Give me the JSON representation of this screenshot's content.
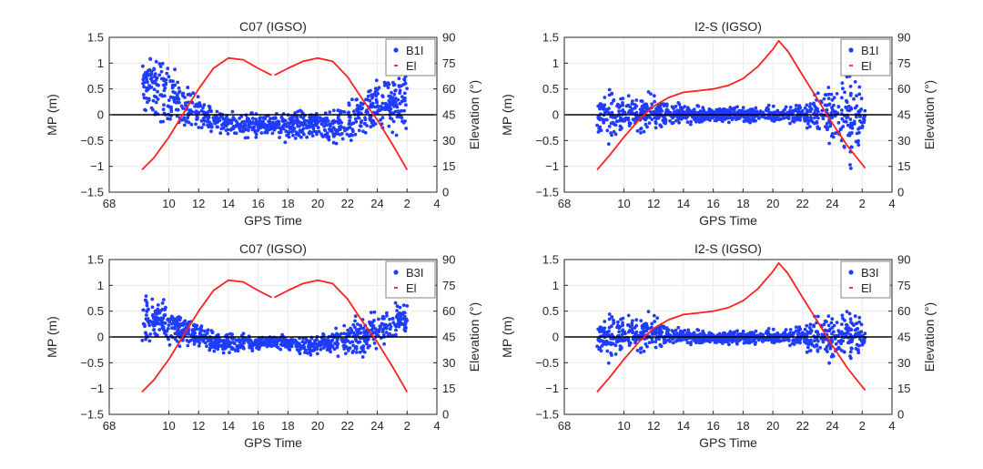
{
  "colors": {
    "series_mp": "#1f3cff",
    "series_el": "#ff2020",
    "zero_line": "#000000",
    "axes": "#262626",
    "grid": "#ececec"
  },
  "chart_data": [
    {
      "type": "scatter",
      "title": "C07 (IGSO)",
      "xlabel": "GPS Time",
      "ylabel": "MP (m)",
      "y2label": "Elevation (°)",
      "ylim": [
        -1.5,
        1.5
      ],
      "y2lim": [
        0,
        90
      ],
      "yticks": [
        "1.5",
        "1",
        "0.5",
        "0",
        "−0.5",
        "−1",
        "−1.5"
      ],
      "y2ticks": [
        "90",
        "75",
        "60",
        "45",
        "30",
        "15",
        "0"
      ],
      "xticks": [
        "68",
        "10",
        "12",
        "14",
        "16",
        "18",
        "20",
        "22",
        "24",
        "2",
        "4"
      ],
      "legend": {
        "position": "top-right",
        "entries": [
          "B1I",
          "El"
        ]
      },
      "grid": true,
      "series": [
        {
          "name": "B1I",
          "kind": "scatter",
          "envelope": [
            {
              "x": 8.2,
              "center": 0.45,
              "spread": 0.6
            },
            {
              "x": 9.0,
              "center": 0.55,
              "spread": 0.7
            },
            {
              "x": 10.0,
              "center": 0.35,
              "spread": 0.55
            },
            {
              "x": 11.0,
              "center": 0.2,
              "spread": 0.45
            },
            {
              "x": 12.0,
              "center": 0.05,
              "spread": 0.3
            },
            {
              "x": 13.0,
              "center": -0.12,
              "spread": 0.25
            },
            {
              "x": 14.5,
              "center": -0.2,
              "spread": 0.22
            },
            {
              "x": 16.9,
              "center": -0.18,
              "spread": 0.2
            },
            {
              "x": 17.1,
              "center": -0.18,
              "spread": 0.25
            },
            {
              "x": 19.0,
              "center": -0.2,
              "spread": 0.28
            },
            {
              "x": 21.0,
              "center": -0.25,
              "spread": 0.32
            },
            {
              "x": 22.0,
              "center": -0.1,
              "spread": 0.35
            },
            {
              "x": 23.0,
              "center": 0.05,
              "spread": 0.45
            },
            {
              "x": 24.0,
              "center": 0.2,
              "spread": 0.55
            },
            {
              "x": 25.0,
              "center": 0.3,
              "spread": 0.65
            },
            {
              "x": 26.0,
              "center": 0.25,
              "spread": 0.65
            }
          ]
        },
        {
          "name": "El",
          "kind": "line",
          "segments": [
            [
              [
                8.2,
                13
              ],
              [
                9,
                20
              ],
              [
                10,
                32
              ],
              [
                11,
                46
              ],
              [
                12,
                60
              ],
              [
                13,
                72
              ],
              [
                14,
                78
              ],
              [
                15,
                77
              ],
              [
                16,
                72
              ],
              [
                16.9,
                68
              ]
            ],
            [
              [
                17.1,
                68
              ],
              [
                18,
                72
              ],
              [
                19,
                76
              ],
              [
                20,
                78
              ],
              [
                21,
                76
              ],
              [
                22,
                67
              ],
              [
                23,
                54
              ],
              [
                24,
                42
              ],
              [
                25,
                28
              ],
              [
                26,
                13
              ]
            ]
          ]
        }
      ]
    },
    {
      "type": "scatter",
      "title": "I2-S (IGSO)",
      "xlabel": "GPS Time",
      "ylabel": "MP (m)",
      "y2label": "Elevation (°)",
      "ylim": [
        -1.5,
        1.5
      ],
      "y2lim": [
        0,
        90
      ],
      "yticks": [
        "1.5",
        "1",
        "0.5",
        "0",
        "−0.5",
        "−1",
        "−1.5"
      ],
      "y2ticks": [
        "90",
        "75",
        "60",
        "45",
        "30",
        "15",
        "0"
      ],
      "xticks": [
        "68",
        "10",
        "12",
        "14",
        "16",
        "18",
        "20",
        "22",
        "24",
        "2",
        "4"
      ],
      "legend": {
        "position": "top-right",
        "entries": [
          "B1I",
          "El"
        ]
      },
      "grid": true,
      "series": [
        {
          "name": "B1I",
          "kind": "scatter",
          "envelope": [
            {
              "x": 8.2,
              "center": 0.0,
              "spread": 0.45
            },
            {
              "x": 9.0,
              "center": 0.0,
              "spread": 0.5
            },
            {
              "x": 10.0,
              "center": 0.0,
              "spread": 0.4
            },
            {
              "x": 11.0,
              "center": 0.0,
              "spread": 0.35
            },
            {
              "x": 12.0,
              "center": 0.05,
              "spread": 0.35
            },
            {
              "x": 13.0,
              "center": 0.02,
              "spread": 0.2
            },
            {
              "x": 15.0,
              "center": 0.0,
              "spread": 0.15
            },
            {
              "x": 17.0,
              "center": 0.0,
              "spread": 0.14
            },
            {
              "x": 19.0,
              "center": 0.0,
              "spread": 0.14
            },
            {
              "x": 21.0,
              "center": 0.0,
              "spread": 0.16
            },
            {
              "x": 22.5,
              "center": 0.0,
              "spread": 0.3
            },
            {
              "x": 24.0,
              "center": 0.0,
              "spread": 0.5
            },
            {
              "x": 25.2,
              "center": -0.1,
              "spread": 0.9
            },
            {
              "x": 26.2,
              "center": 0.0,
              "spread": 0.35
            }
          ]
        },
        {
          "name": "El",
          "kind": "line",
          "segments": [
            [
              [
                8.2,
                13
              ],
              [
                9,
                21
              ],
              [
                10,
                32
              ],
              [
                11,
                42
              ],
              [
                12,
                50
              ],
              [
                13,
                55
              ],
              [
                14,
                58
              ],
              [
                15,
                59
              ],
              [
                16,
                60
              ],
              [
                17,
                62
              ],
              [
                18,
                66
              ],
              [
                19,
                73
              ],
              [
                20,
                83
              ],
              [
                20.4,
                88
              ],
              [
                21,
                82
              ],
              [
                22,
                68
              ],
              [
                23,
                54
              ],
              [
                24,
                40
              ],
              [
                25,
                27
              ],
              [
                26.2,
                14
              ]
            ]
          ]
        }
      ]
    },
    {
      "type": "scatter",
      "title": "C07 (IGSO)",
      "xlabel": "GPS Time",
      "ylabel": "MP (m)",
      "y2label": "Elevation (°)",
      "ylim": [
        -1.5,
        1.5
      ],
      "y2lim": [
        0,
        90
      ],
      "yticks": [
        "1.5",
        "1",
        "0.5",
        "0",
        "−0.5",
        "−1",
        "−1.5"
      ],
      "y2ticks": [
        "90",
        "75",
        "60",
        "45",
        "30",
        "15",
        "0"
      ],
      "xticks": [
        "68",
        "10",
        "12",
        "14",
        "16",
        "18",
        "20",
        "22",
        "24",
        "2",
        "4"
      ],
      "legend": {
        "position": "top-right",
        "entries": [
          "B3I",
          "El"
        ]
      },
      "grid": true,
      "series": [
        {
          "name": "B3I",
          "kind": "scatter",
          "envelope": [
            {
              "x": 8.2,
              "center": 0.3,
              "spread": 0.4
            },
            {
              "x": 9.0,
              "center": 0.35,
              "spread": 0.45
            },
            {
              "x": 10.0,
              "center": 0.25,
              "spread": 0.35
            },
            {
              "x": 11.0,
              "center": 0.15,
              "spread": 0.3
            },
            {
              "x": 12.0,
              "center": 0.05,
              "spread": 0.2
            },
            {
              "x": 13.0,
              "center": -0.1,
              "spread": 0.2
            },
            {
              "x": 15.0,
              "center": -0.12,
              "spread": 0.15
            },
            {
              "x": 16.9,
              "center": -0.1,
              "spread": 0.12
            },
            {
              "x": 17.1,
              "center": -0.1,
              "spread": 0.12
            },
            {
              "x": 19.0,
              "center": -0.15,
              "spread": 0.15
            },
            {
              "x": 21.0,
              "center": -0.15,
              "spread": 0.25
            },
            {
              "x": 22.0,
              "center": 0.0,
              "spread": 0.35
            },
            {
              "x": 23.0,
              "center": 0.0,
              "spread": 0.4
            },
            {
              "x": 24.0,
              "center": 0.15,
              "spread": 0.35
            },
            {
              "x": 25.0,
              "center": 0.3,
              "spread": 0.35
            },
            {
              "x": 26.0,
              "center": 0.35,
              "spread": 0.35
            }
          ]
        },
        {
          "name": "El",
          "kind": "line",
          "segments": [
            [
              [
                8.2,
                13
              ],
              [
                9,
                20
              ],
              [
                10,
                32
              ],
              [
                11,
                46
              ],
              [
                12,
                60
              ],
              [
                13,
                72
              ],
              [
                14,
                78
              ],
              [
                15,
                77
              ],
              [
                16,
                72
              ],
              [
                16.9,
                68
              ]
            ],
            [
              [
                17.1,
                68
              ],
              [
                18,
                72
              ],
              [
                19,
                76
              ],
              [
                20,
                78
              ],
              [
                21,
                76
              ],
              [
                22,
                67
              ],
              [
                23,
                54
              ],
              [
                24,
                42
              ],
              [
                25,
                28
              ],
              [
                26,
                13
              ]
            ]
          ]
        }
      ]
    },
    {
      "type": "scatter",
      "title": "I2-S (IGSO)",
      "xlabel": "GPS Time",
      "ylabel": "MP (m)",
      "y2label": "Elevation (°)",
      "ylim": [
        -1.5,
        1.5
      ],
      "y2lim": [
        0,
        90
      ],
      "yticks": [
        "1.5",
        "1",
        "0.5",
        "0",
        "−0.5",
        "−1",
        "−1.5"
      ],
      "y2ticks": [
        "90",
        "75",
        "60",
        "45",
        "30",
        "15",
        "0"
      ],
      "xticks": [
        "68",
        "10",
        "12",
        "14",
        "16",
        "18",
        "20",
        "22",
        "24",
        "2",
        "4"
      ],
      "legend": {
        "position": "top-right",
        "entries": [
          "B3I",
          "El"
        ]
      },
      "grid": true,
      "series": [
        {
          "name": "B3I",
          "kind": "scatter",
          "envelope": [
            {
              "x": 8.2,
              "center": 0.0,
              "spread": 0.4
            },
            {
              "x": 9.0,
              "center": 0.0,
              "spread": 0.45
            },
            {
              "x": 10.0,
              "center": 0.05,
              "spread": 0.4
            },
            {
              "x": 11.0,
              "center": 0.05,
              "spread": 0.35
            },
            {
              "x": 12.0,
              "center": 0.1,
              "spread": 0.35
            },
            {
              "x": 13.0,
              "center": 0.02,
              "spread": 0.15
            },
            {
              "x": 15.0,
              "center": 0.0,
              "spread": 0.12
            },
            {
              "x": 17.0,
              "center": -0.02,
              "spread": 0.12
            },
            {
              "x": 19.0,
              "center": 0.0,
              "spread": 0.12
            },
            {
              "x": 21.0,
              "center": 0.0,
              "spread": 0.15
            },
            {
              "x": 22.5,
              "center": 0.0,
              "spread": 0.35
            },
            {
              "x": 24.0,
              "center": -0.05,
              "spread": 0.4
            },
            {
              "x": 25.0,
              "center": 0.05,
              "spread": 0.45
            },
            {
              "x": 26.2,
              "center": 0.0,
              "spread": 0.3
            }
          ]
        },
        {
          "name": "El",
          "kind": "line",
          "segments": [
            [
              [
                8.2,
                13
              ],
              [
                9,
                21
              ],
              [
                10,
                32
              ],
              [
                11,
                42
              ],
              [
                12,
                50
              ],
              [
                13,
                55
              ],
              [
                14,
                58
              ],
              [
                15,
                59
              ],
              [
                16,
                60
              ],
              [
                17,
                62
              ],
              [
                18,
                66
              ],
              [
                19,
                73
              ],
              [
                20,
                83
              ],
              [
                20.4,
                88
              ],
              [
                21,
                82
              ],
              [
                22,
                68
              ],
              [
                23,
                54
              ],
              [
                24,
                40
              ],
              [
                25,
                27
              ],
              [
                26.2,
                14
              ]
            ]
          ]
        }
      ]
    }
  ]
}
